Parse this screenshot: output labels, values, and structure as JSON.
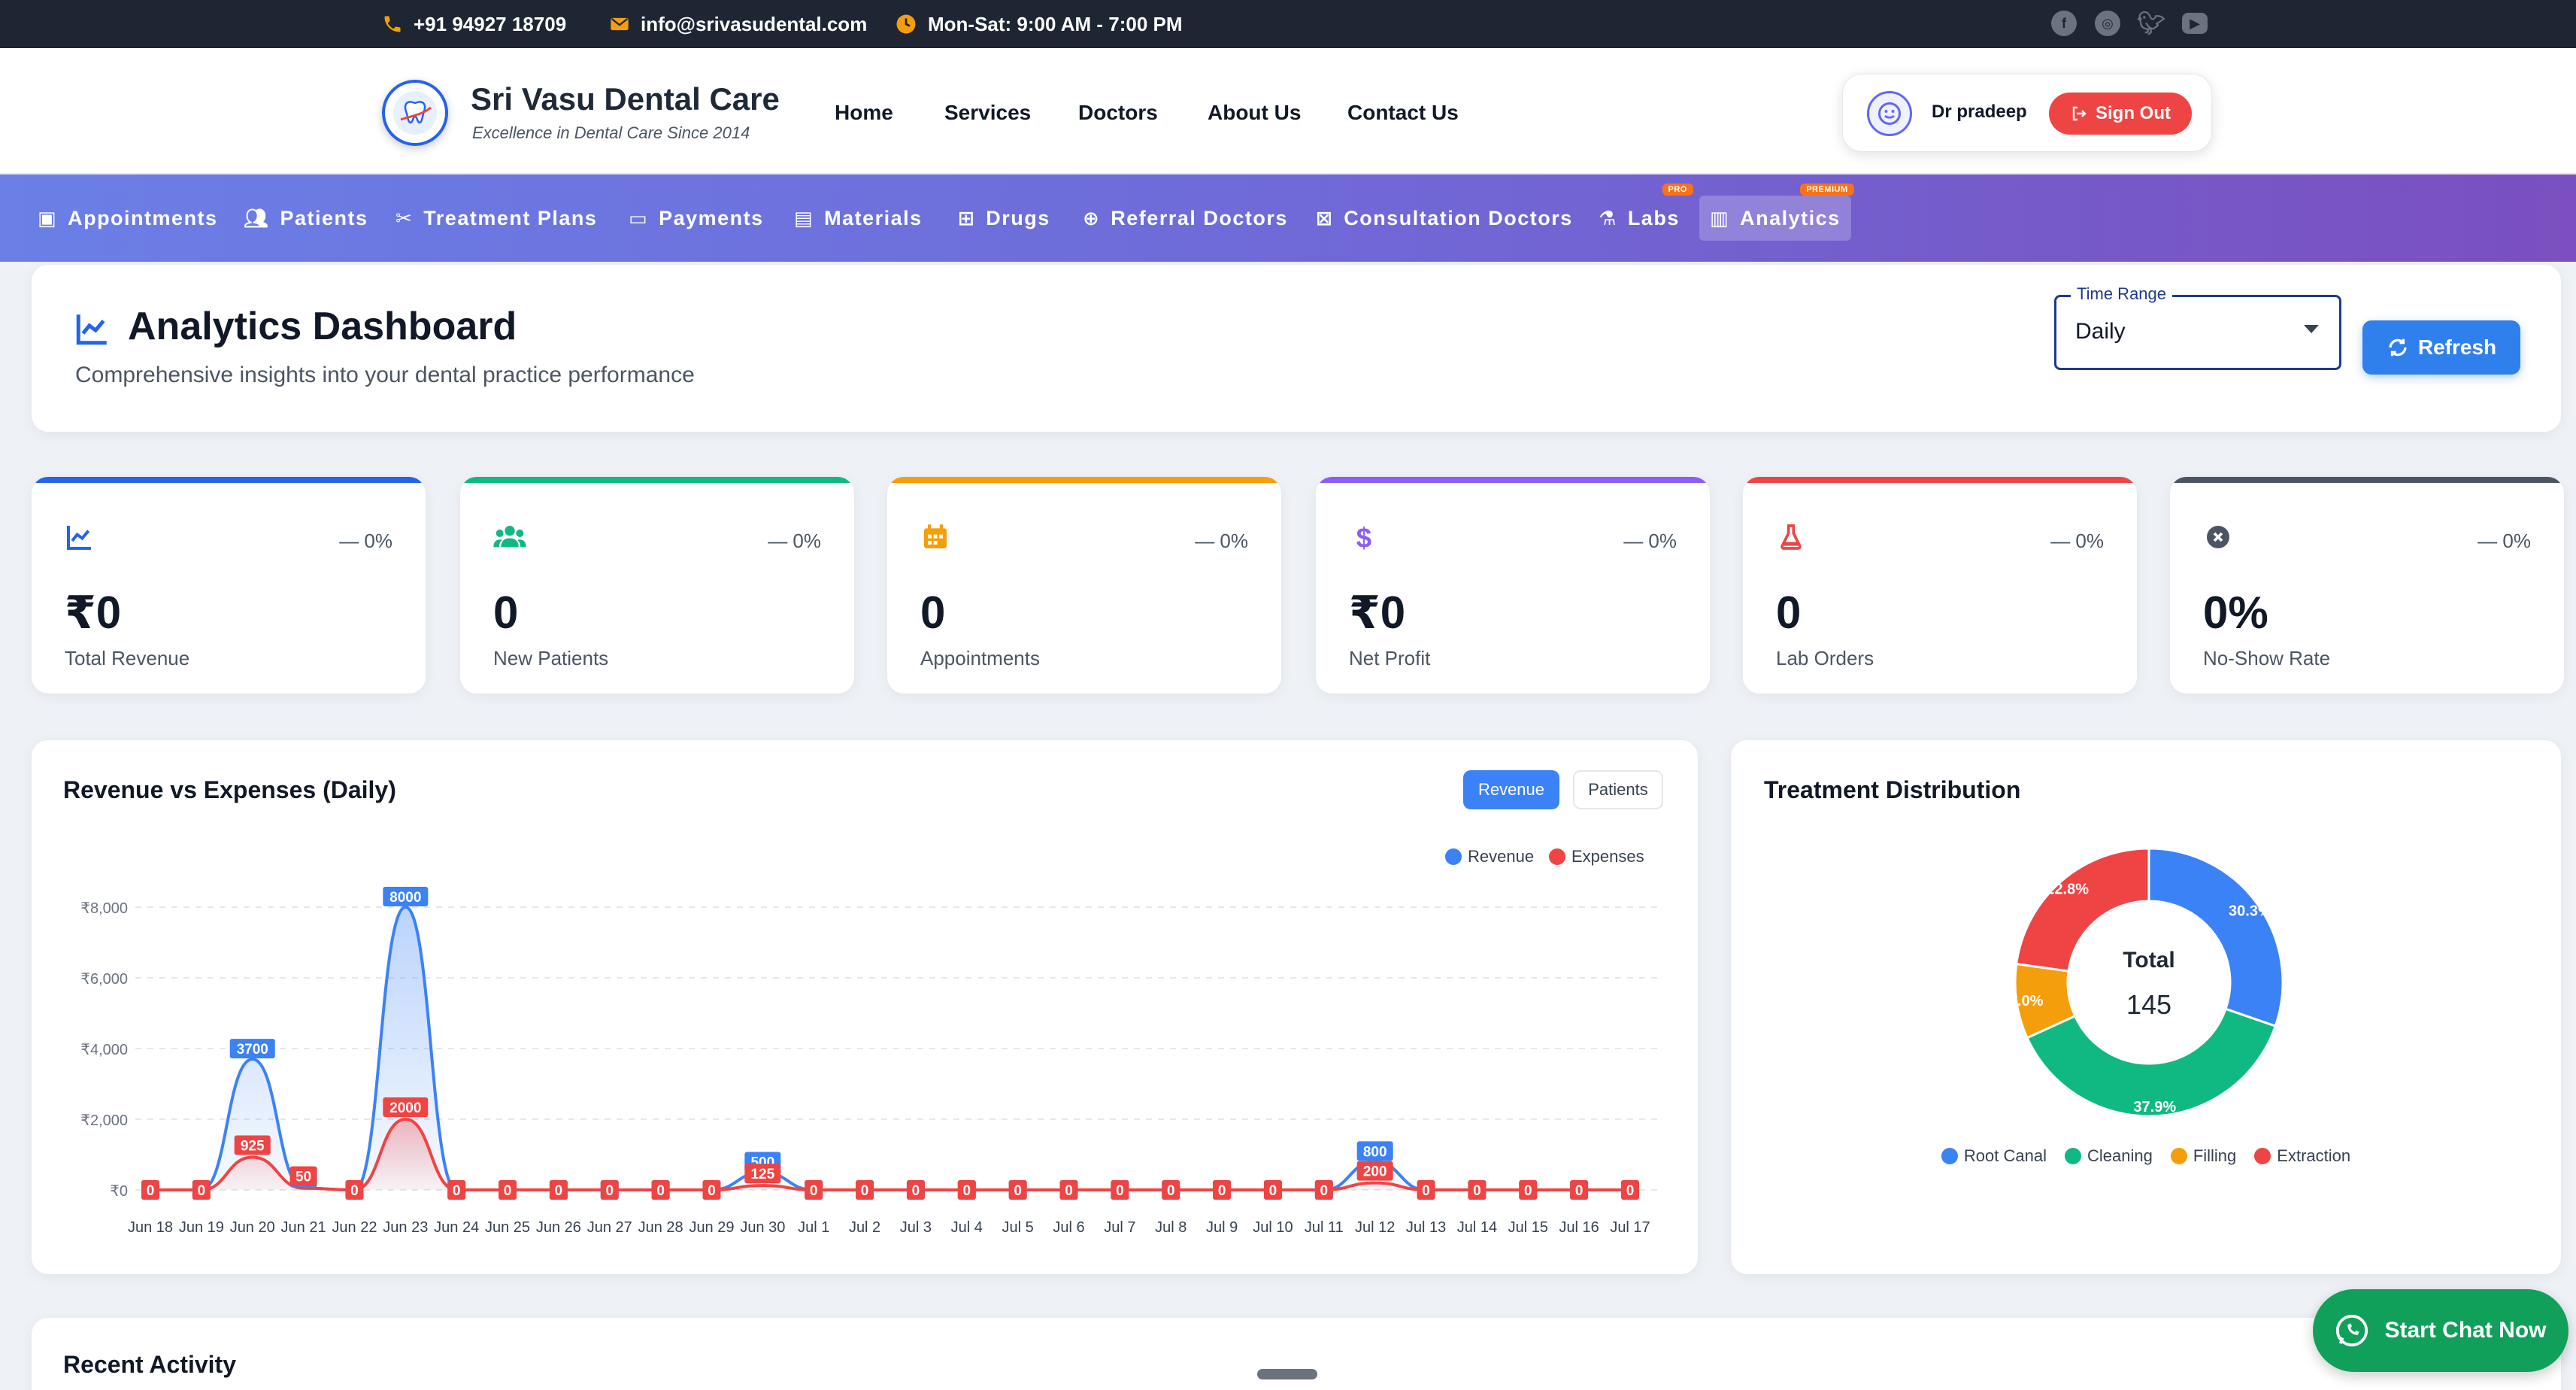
{
  "topbar": {
    "phone": "+91 94927 18709",
    "email": "info@srivasudental.com",
    "hours": "Mon-Sat: 9:00 AM - 7:00 PM",
    "socials": [
      "facebook-icon",
      "instagram-icon",
      "twitter-icon",
      "youtube-icon"
    ]
  },
  "header": {
    "brand_title": "Sri Vasu Dental Care",
    "brand_subtitle": "Excellence in Dental Care Since 2014",
    "nav": [
      "Home",
      "Services",
      "Doctors",
      "About Us",
      "Contact Us"
    ],
    "user_name": "Dr pradeep",
    "signout_label": "Sign Out"
  },
  "subnav": {
    "items": [
      {
        "label": "Appointments",
        "icon": "calendar-icon"
      },
      {
        "label": "Patients",
        "icon": "users-icon"
      },
      {
        "label": "Treatment Plans",
        "icon": "tools-icon"
      },
      {
        "label": "Payments",
        "icon": "card-icon"
      },
      {
        "label": "Materials",
        "icon": "archive-icon"
      },
      {
        "label": "Drugs",
        "icon": "medkit-icon"
      },
      {
        "label": "Referral Doctors",
        "icon": "plus-box-icon"
      },
      {
        "label": "Consultation Doctors",
        "icon": "medical-bag-icon"
      },
      {
        "label": "Labs",
        "icon": "flask-icon",
        "badge": "PRO"
      },
      {
        "label": "Analytics",
        "icon": "analytics-icon",
        "badge": "PREMIUM",
        "active": true
      }
    ]
  },
  "dashboard": {
    "title": "Analytics Dashboard",
    "subtitle": "Comprehensive insights into your dental practice performance",
    "time_range_label": "Time Range",
    "time_range_value": "Daily",
    "refresh_label": "Refresh"
  },
  "stats": [
    {
      "label": "Total Revenue",
      "value": "₹0",
      "change": "— 0%",
      "color": "#2563eb",
      "icon": "trend-icon"
    },
    {
      "label": "New Patients",
      "value": "0",
      "change": "— 0%",
      "color": "#10b981",
      "icon": "users-icon"
    },
    {
      "label": "Appointments",
      "value": "0",
      "change": "— 0%",
      "color": "#f59e0b",
      "icon": "calendar-icon"
    },
    {
      "label": "Net Profit",
      "value": "₹0",
      "change": "— 0%",
      "color": "#8b5cf6",
      "icon": "dollar-icon"
    },
    {
      "label": "Lab Orders",
      "value": "0",
      "change": "— 0%",
      "color": "#ef4444",
      "icon": "flask-icon"
    },
    {
      "label": "No-Show Rate",
      "value": "0%",
      "change": "— 0%",
      "color": "#4b5563",
      "icon": "x-circle-icon"
    }
  ],
  "revenue_chart": {
    "title": "Revenue vs Expenses (Daily)",
    "toggle": [
      "Revenue",
      "Patients"
    ],
    "active_toggle": "Revenue"
  },
  "treatment_chart": {
    "title": "Treatment Distribution",
    "center_label": "Total",
    "center_value": "145"
  },
  "recent": {
    "title": "Recent Activity"
  },
  "chat": {
    "label": "Start Chat Now"
  },
  "chart_data": [
    {
      "type": "area",
      "title": "Revenue vs Expenses (Daily)",
      "xlabel": "",
      "ylabel": "",
      "ylim": [
        0,
        8000
      ],
      "yticks": [
        "₹0",
        "₹2,000",
        "₹4,000",
        "₹6,000",
        "₹8,000"
      ],
      "ytick_values": [
        0,
        2000,
        4000,
        6000,
        8000
      ],
      "x": [
        "Jun 18",
        "Jun 19",
        "Jun 20",
        "Jun 21",
        "Jun 22",
        "Jun 23",
        "Jun 24",
        "Jun 25",
        "Jun 26",
        "Jun 27",
        "Jun 28",
        "Jun 29",
        "Jun 30",
        "Jul 1",
        "Jul 2",
        "Jul 3",
        "Jul 4",
        "Jul 5",
        "Jul 6",
        "Jul 7",
        "Jul 8",
        "Jul 9",
        "Jul 10",
        "Jul 11",
        "Jul 12",
        "Jul 13",
        "Jul 14",
        "Jul 15",
        "Jul 16",
        "Jul 17"
      ],
      "legend_position": "top-right",
      "grid": true,
      "series": [
        {
          "name": "Revenue",
          "color": "#3b82f6",
          "values": [
            0,
            0,
            3700,
            50,
            0,
            8000,
            0,
            0,
            0,
            0,
            0,
            0,
            500,
            0,
            0,
            0,
            0,
            0,
            0,
            0,
            0,
            0,
            0,
            0,
            800,
            0,
            0,
            0,
            0,
            0
          ]
        },
        {
          "name": "Expenses",
          "color": "#ef4444",
          "values": [
            0,
            0,
            925,
            50,
            0,
            2000,
            0,
            0,
            0,
            0,
            0,
            0,
            125,
            0,
            0,
            0,
            0,
            0,
            0,
            0,
            0,
            0,
            0,
            0,
            200,
            0,
            0,
            0,
            0,
            0
          ]
        }
      ]
    },
    {
      "type": "pie",
      "title": "Treatment Distribution",
      "categories": [
        "Root Canal",
        "Cleaning",
        "Filling",
        "Extraction"
      ],
      "values": [
        30.3,
        37.9,
        9.0,
        22.8
      ],
      "labels": [
        "30.3%",
        "37.9%",
        "9.0%",
        "22.8%"
      ],
      "colors": [
        "#3b82f6",
        "#10b981",
        "#f59e0b",
        "#ef4444"
      ],
      "legend_position": "bottom",
      "donut": true
    }
  ]
}
